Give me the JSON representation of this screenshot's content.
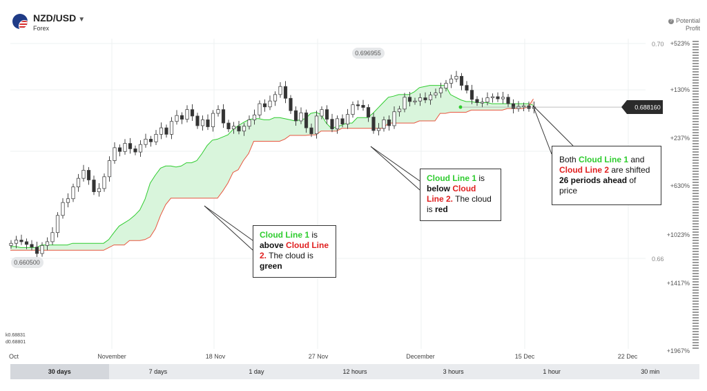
{
  "header": {
    "pair": "NZD/USD",
    "category": "Forex",
    "potential_profit": [
      "Potential",
      "Profit"
    ]
  },
  "chart": {
    "x_labels": [
      "Oct",
      "November",
      "18 Nov",
      "27 Nov",
      "December",
      "15 Dec",
      "22 Dec"
    ],
    "y_price_labels": [
      "0.70",
      "0.66"
    ],
    "y_profit_labels": [
      "+523%",
      "+130%",
      "+237%",
      "+630%",
      "+1023%",
      "+1417%",
      "+1967%"
    ],
    "bubbles": {
      "high": "0.696955",
      "low": "0.660500"
    },
    "current_price": "0.688160",
    "ctx_lines": [
      "k0.68831",
      "d0.68801"
    ],
    "colors": {
      "bull_cloud": "#2ecc2e",
      "bear_cloud": "#e8553e",
      "current_tag": "#2b2b2b"
    }
  },
  "callouts": {
    "green": {
      "p1": "Cloud Line 1",
      "p2": " is ",
      "p3": "above",
      "p4": "Cloud Line 2.",
      "p5": " The cloud is ",
      "p6": "green"
    },
    "red": {
      "p1": "Cloud Line 1",
      "p2": " is ",
      "p3": "below",
      "p4": "Cloud Line 2.",
      "p5": " The cloud is ",
      "p6": "red"
    },
    "shift": {
      "p1": "Both ",
      "p2": "Cloud Line 1",
      "p3": " and ",
      "p4": "Cloud Line 2",
      "p5": " are shifted ",
      "p6": "26 periods ahead",
      "p7": " of price"
    }
  },
  "timeframes": [
    "30 days",
    "7 days",
    "1 day",
    "12 hours",
    "3 hours",
    "1 hour",
    "30 min"
  ],
  "active_timeframe": "30 days",
  "chart_data": {
    "type": "candlestick",
    "price_axis": [
      0.66,
      0.7
    ],
    "current_price": 0.68816,
    "closes": [
      0.6628,
      0.6634,
      0.6631,
      0.6626,
      0.6621,
      0.6609,
      0.6624,
      0.6631,
      0.6648,
      0.668,
      0.6704,
      0.6711,
      0.6733,
      0.6749,
      0.6764,
      0.6746,
      0.6724,
      0.673,
      0.6752,
      0.6782,
      0.6806,
      0.6799,
      0.6814,
      0.6804,
      0.6798,
      0.6812,
      0.6822,
      0.6817,
      0.6831,
      0.6843,
      0.6831,
      0.6855,
      0.6866,
      0.6859,
      0.6877,
      0.6865,
      0.6847,
      0.6858,
      0.6845,
      0.687,
      0.6877,
      0.6852,
      0.6841,
      0.6846,
      0.6837,
      0.6846,
      0.6858,
      0.6867,
      0.6888,
      0.6882,
      0.6893,
      0.6905,
      0.692,
      0.6898,
      0.6875,
      0.6856,
      0.6871,
      0.6843,
      0.6832,
      0.6865,
      0.6877,
      0.6859,
      0.6841,
      0.686,
      0.685,
      0.6868,
      0.6886,
      0.6885,
      0.6881,
      0.6863,
      0.6838,
      0.6842,
      0.6858,
      0.6847,
      0.6873,
      0.6878,
      0.69,
      0.6892,
      0.6893,
      0.6899,
      0.6895,
      0.6904,
      0.6908,
      0.6917,
      0.6926,
      0.6934,
      0.6939,
      0.6922,
      0.6913,
      0.6896,
      0.689,
      0.6891,
      0.6899,
      0.6901,
      0.6897,
      0.69,
      0.6888,
      0.6879,
      0.6883,
      0.6884,
      0.6879,
      0.6882
    ],
    "cloud_line_1": [
      0.6622,
      0.6622,
      0.662,
      0.662,
      0.662,
      0.662,
      0.6625,
      0.6625,
      0.6625,
      0.6625,
      0.6625,
      0.6625,
      0.6628,
      0.6628,
      0.6628,
      0.6628,
      0.6628,
      0.6628,
      0.6628,
      0.6635,
      0.6648,
      0.666,
      0.6666,
      0.6672,
      0.668,
      0.669,
      0.671,
      0.674,
      0.6755,
      0.6768,
      0.6772,
      0.6772,
      0.677,
      0.6772,
      0.6778,
      0.6778,
      0.6782,
      0.6795,
      0.681,
      0.682,
      0.6822,
      0.6826,
      0.683,
      0.684,
      0.6847,
      0.6853,
      0.6858,
      0.686,
      0.686,
      0.6858,
      0.6858,
      0.6862,
      0.6862,
      0.686,
      0.6858,
      0.6856,
      0.6858,
      0.686,
      0.687,
      0.6872,
      0.6868,
      0.6852,
      0.6842,
      0.6845,
      0.6848,
      0.6852,
      0.6852,
      0.6862,
      0.6862,
      0.6862,
      0.687,
      0.688,
      0.689,
      0.69,
      0.6902,
      0.6905,
      0.6905,
      0.6905,
      0.691,
      0.6918,
      0.692,
      0.6922,
      0.6922,
      0.6922,
      0.6922,
      0.6905,
      0.69,
      0.6895,
      0.6892,
      0.6892,
      0.689,
      0.689,
      0.689,
      0.6888,
      0.6888,
      0.6888,
      0.6888,
      0.6888,
      0.6888,
      0.6888,
      0.6888,
      0.6885
    ],
    "cloud_line_2": [
      0.6615,
      0.6615,
      0.6615,
      0.6615,
      0.6615,
      0.6615,
      0.6615,
      0.6615,
      0.6615,
      0.6615,
      0.6615,
      0.6615,
      0.6615,
      0.6615,
      0.6615,
      0.6615,
      0.6615,
      0.6615,
      0.6615,
      0.662,
      0.6625,
      0.6625,
      0.6625,
      0.6633,
      0.6633,
      0.6633,
      0.6635,
      0.664,
      0.6655,
      0.668,
      0.67,
      0.6712,
      0.6712,
      0.6712,
      0.6712,
      0.6712,
      0.6712,
      0.6712,
      0.6712,
      0.6712,
      0.6712,
      0.6725,
      0.674,
      0.676,
      0.6765,
      0.6782,
      0.6795,
      0.6818,
      0.6818,
      0.6818,
      0.6818,
      0.6818,
      0.6818,
      0.6822,
      0.6829,
      0.6829,
      0.6829,
      0.6829,
      0.683,
      0.683,
      0.6837,
      0.6837,
      0.6837,
      0.6837,
      0.6842,
      0.6842,
      0.6842,
      0.6842,
      0.6842,
      0.6842,
      0.6842,
      0.6842,
      0.6842,
      0.6852,
      0.6852,
      0.6852,
      0.6852,
      0.6852,
      0.6852,
      0.6856,
      0.6856,
      0.6856,
      0.6856,
      0.687,
      0.687,
      0.6872,
      0.6872,
      0.6872,
      0.6872,
      0.6876,
      0.6876,
      0.6876,
      0.6876,
      0.6876,
      0.6876,
      0.6876,
      0.6879,
      0.6879,
      0.6879,
      0.6879,
      0.6882,
      0.6897
    ]
  }
}
